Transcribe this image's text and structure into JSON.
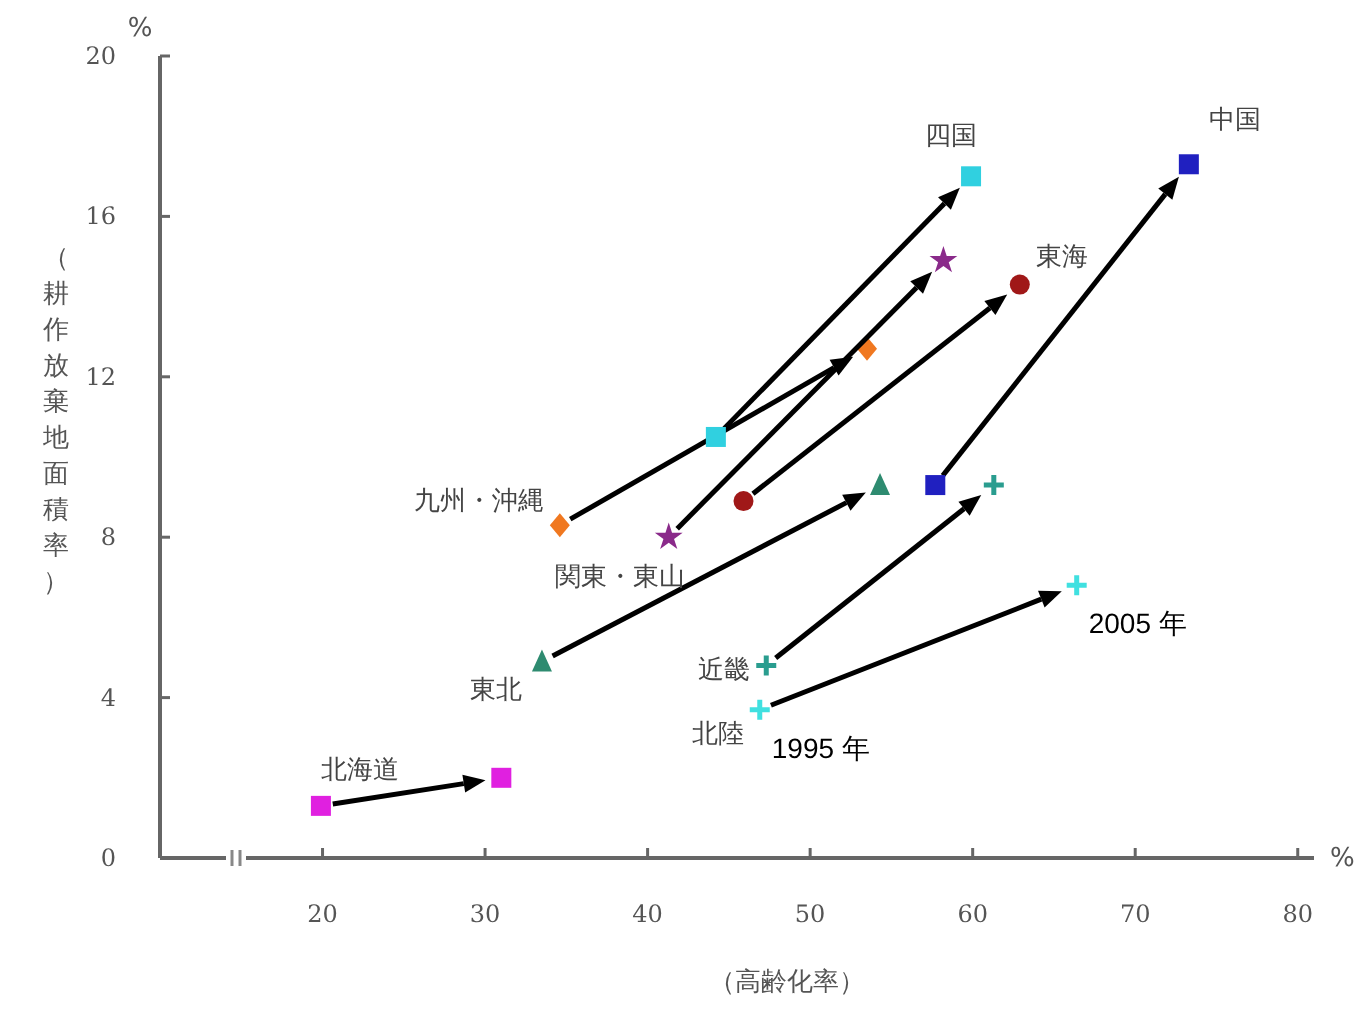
{
  "chart_data": {
    "type": "scatter",
    "xlabel": "（高齢化率）",
    "ylabel": "（耕作放棄地面積率）",
    "xlim": [
      10,
      81
    ],
    "xticks": [
      20,
      30,
      40,
      50,
      60,
      70,
      80
    ],
    "ylim": [
      0,
      20
    ],
    "yticks": [
      0,
      4,
      8,
      12,
      16,
      20
    ],
    "grid": false,
    "series": [
      {
        "name": "北海道",
        "color": "#e020e0",
        "marker": "square",
        "x": [
          19.9,
          31.0
        ],
        "values": [
          1.3,
          2.0
        ]
      },
      {
        "name": "東北",
        "color": "#2e8b70",
        "marker": "triangle",
        "x": [
          33.5,
          54.3
        ],
        "values": [
          4.9,
          9.3
        ]
      },
      {
        "name": "近畿",
        "color": "#2a9d8f",
        "marker": "cross",
        "x": [
          47.3,
          61.3
        ],
        "values": [
          4.8,
          9.3
        ]
      },
      {
        "name": "北陸",
        "color": "#40e0e0",
        "marker": "cross",
        "x": [
          46.9,
          66.4
        ],
        "values": [
          3.7,
          6.8
        ]
      },
      {
        "name": "九州・沖縄",
        "color": "#f07820",
        "marker": "diamond",
        "x": [
          34.6,
          53.5
        ],
        "values": [
          8.3,
          12.7
        ]
      },
      {
        "name": "関東・東山",
        "color": "#8a2a8a",
        "marker": "star",
        "x": [
          41.3,
          58.2
        ],
        "values": [
          8.0,
          14.9
        ]
      },
      {
        "name": "東海",
        "color": "#a01818",
        "marker": "circle",
        "x": [
          45.9,
          62.9
        ],
        "values": [
          8.9,
          14.3
        ]
      },
      {
        "name": "四国",
        "color": "#30d0e0",
        "marker": "square",
        "x": [
          44.2,
          59.9
        ],
        "values": [
          10.5,
          17.0
        ]
      },
      {
        "name": "中国",
        "color": "#2020c0",
        "marker": "square",
        "x": [
          57.7,
          73.3
        ],
        "values": [
          9.3,
          17.3
        ]
      }
    ],
    "annotations": [
      "%",
      "%",
      {
        "text": "1995 年",
        "x": 46.9,
        "y": 3.7
      },
      {
        "text": "2005 年",
        "x": 66.4,
        "y": 6.8
      }
    ]
  }
}
